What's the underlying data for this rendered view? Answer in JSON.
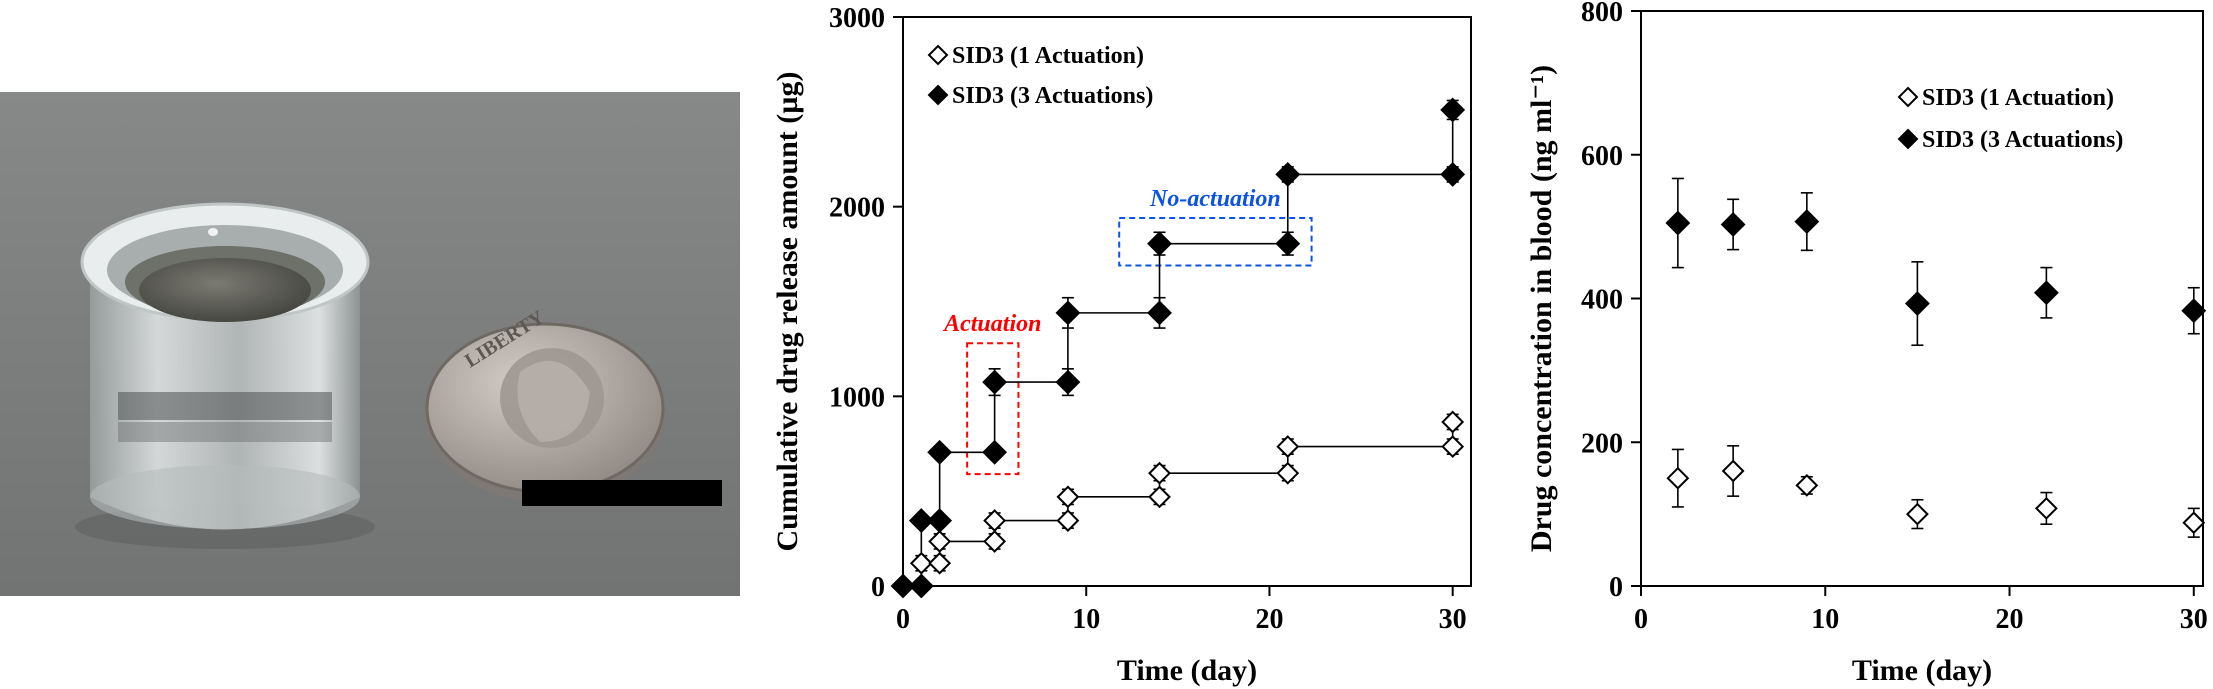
{
  "photo": {
    "description_icon": "device-with-coin-photo",
    "colors": {
      "background": "#7f8080",
      "device": "#cfd3d3",
      "coin": "#a9a39e",
      "scale_bar": "#000000"
    },
    "coin_text": "LIBERTY"
  },
  "chart_data": [
    {
      "type": "line",
      "xlabel": "Time (day)",
      "ylabel": "Cumulative drug release amount (µg)",
      "xlim": [
        0,
        30
      ],
      "ylim": [
        0,
        3000
      ],
      "xticks": [
        0,
        10,
        20,
        30
      ],
      "yticks": [
        0,
        1000,
        2000,
        3000
      ],
      "step": true,
      "legend_position": "top-left",
      "series": [
        {
          "name": "SID3 (1 Actuation)",
          "marker": "diamond-open",
          "color": "#000000",
          "points": [
            {
              "x": 0,
              "y": 0,
              "err": 0
            },
            {
              "x": 1,
              "y": 0,
              "err": 0
            },
            {
              "x": 1,
              "y": 120,
              "err": 40
            },
            {
              "x": 2,
              "y": 120,
              "err": 40
            },
            {
              "x": 2,
              "y": 235,
              "err": 40
            },
            {
              "x": 5,
              "y": 235,
              "err": 40
            },
            {
              "x": 5,
              "y": 345,
              "err": 40
            },
            {
              "x": 9,
              "y": 345,
              "err": 40
            },
            {
              "x": 9,
              "y": 470,
              "err": 40
            },
            {
              "x": 14,
              "y": 470,
              "err": 40
            },
            {
              "x": 14,
              "y": 595,
              "err": 40
            },
            {
              "x": 21,
              "y": 595,
              "err": 40
            },
            {
              "x": 21,
              "y": 735,
              "err": 40
            },
            {
              "x": 30,
              "y": 735,
              "err": 40
            },
            {
              "x": 30,
              "y": 865,
              "err": 40
            }
          ]
        },
        {
          "name": "SID3 (3 Actuations)",
          "marker": "diamond-filled",
          "color": "#000000",
          "points": [
            {
              "x": 0,
              "y": 0,
              "err": 0
            },
            {
              "x": 1,
              "y": 0,
              "err": 0
            },
            {
              "x": 1,
              "y": 345,
              "err": 30
            },
            {
              "x": 2,
              "y": 345,
              "err": 30
            },
            {
              "x": 2,
              "y": 705,
              "err": 30
            },
            {
              "x": 5,
              "y": 705,
              "err": 30
            },
            {
              "x": 5,
              "y": 1075,
              "err": 70
            },
            {
              "x": 9,
              "y": 1075,
              "err": 70
            },
            {
              "x": 9,
              "y": 1440,
              "err": 80
            },
            {
              "x": 14,
              "y": 1440,
              "err": 80
            },
            {
              "x": 14,
              "y": 1805,
              "err": 60
            },
            {
              "x": 21,
              "y": 1805,
              "err": 60
            },
            {
              "x": 21,
              "y": 2170,
              "err": 40
            },
            {
              "x": 30,
              "y": 2170,
              "err": 40
            },
            {
              "x": 30,
              "y": 2510,
              "err": 50
            }
          ]
        }
      ],
      "annotations": [
        {
          "text": "Actuation",
          "color": "#ff0000",
          "x0": 3.5,
          "x1": 6.3,
          "y0": 590,
          "y1": 1280
        },
        {
          "text": "No-actuation",
          "color": "#0b53e6",
          "x0": 11.8,
          "x1": 22.3,
          "y0": 1690,
          "y1": 1940
        }
      ]
    },
    {
      "type": "scatter",
      "xlabel": "Time (day)",
      "ylabel": "Drug concentration in blood (ng ml⁻¹)",
      "xlim": [
        0,
        30
      ],
      "ylim": [
        0,
        800
      ],
      "xticks": [
        0,
        10,
        20,
        30
      ],
      "yticks": [
        0,
        200,
        400,
        600,
        800
      ],
      "legend_position": "top-right",
      "series": [
        {
          "name": "SID3 (1 Actuation)",
          "marker": "diamond-open",
          "color": "#000000",
          "points": [
            {
              "x": 2,
              "y": 150,
              "err": 40
            },
            {
              "x": 5,
              "y": 160,
              "err": 35
            },
            {
              "x": 9,
              "y": 140,
              "err": 12
            },
            {
              "x": 15,
              "y": 100,
              "err": 20
            },
            {
              "x": 22,
              "y": 108,
              "err": 22
            },
            {
              "x": 30,
              "y": 88,
              "err": 20
            }
          ]
        },
        {
          "name": "SID3 (3 Actuations)",
          "marker": "diamond-filled",
          "color": "#000000",
          "points": [
            {
              "x": 2,
              "y": 505,
              "err": 62
            },
            {
              "x": 5,
              "y": 503,
              "err": 35
            },
            {
              "x": 9,
              "y": 507,
              "err": 40
            },
            {
              "x": 15,
              "y": 393,
              "err": 58
            },
            {
              "x": 22,
              "y": 408,
              "err": 35
            },
            {
              "x": 30,
              "y": 383,
              "err": 32
            }
          ]
        }
      ]
    }
  ]
}
